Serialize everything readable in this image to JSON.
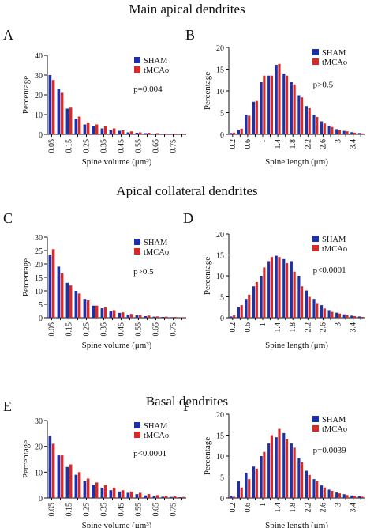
{
  "sections": [
    {
      "title": "Main apical dendrites"
    },
    {
      "title": "Apical collateral dendrites"
    },
    {
      "title": "Basal dendrites"
    }
  ],
  "colors": {
    "sham": "#1f2fa8",
    "tmcao": "#d42a2a"
  },
  "chart_data": [
    {
      "panel": "A",
      "type": "bar",
      "xlabel": "Spine volume (μm³)",
      "ylabel": "Percentage",
      "ylim": [
        0,
        40
      ],
      "yticks": [
        0,
        10,
        20,
        30,
        40
      ],
      "categories": [
        "0.05",
        "0.10",
        "0.15",
        "0.20",
        "0.25",
        "0.30",
        "0.35",
        "0.40",
        "0.45",
        "0.50",
        "0.55",
        "0.60",
        "0.65",
        "0.70",
        "0.75",
        "0.80"
      ],
      "xtick_labels": [
        "0.05",
        "0.15",
        "0.25",
        "0.35",
        "0.45",
        "0.55",
        "0.65",
        "0.75"
      ],
      "series": [
        {
          "name": "SHAM",
          "values": [
            30,
            23,
            13,
            8,
            5,
            4,
            3,
            2,
            1.8,
            1,
            0.8,
            0.6,
            0.4,
            0.3,
            0.2,
            0.1
          ]
        },
        {
          "name": "tMCAo",
          "values": [
            27.5,
            21,
            13.5,
            9,
            6,
            5,
            4,
            3,
            2,
            1.5,
            1,
            0.8,
            0.6,
            0.4,
            0.3,
            0.2
          ]
        }
      ],
      "annotation": "p=0.004",
      "legend": "top-right"
    },
    {
      "panel": "B",
      "type": "bar",
      "xlabel": "Spine length (μm)",
      "ylabel": "Percentage",
      "ylim": [
        0,
        20
      ],
      "yticks": [
        0,
        5,
        10,
        15,
        20
      ],
      "categories": [
        "0.2",
        "0.4",
        "0.6",
        "0.8",
        "1.0",
        "1.2",
        "1.4",
        "1.6",
        "1.8",
        "2.0",
        "2.2",
        "2.4",
        "2.6",
        "2.8",
        "3.0",
        "3.2",
        "3.4",
        "3.6"
      ],
      "xtick_labels": [
        "0.2",
        "0.6",
        "1",
        "1.4",
        "1.8",
        "2.2",
        "2.6",
        "3",
        "3.4"
      ],
      "series": [
        {
          "name": "SHAM",
          "values": [
            0.3,
            1,
            4.5,
            7.5,
            12,
            13.5,
            16,
            14,
            12,
            9,
            6.5,
            4.5,
            3,
            2,
            1.2,
            0.8,
            0.5,
            0.3
          ]
        },
        {
          "name": "tMCAo",
          "values": [
            0.4,
            1.3,
            4.3,
            7.7,
            13.5,
            13.5,
            16.2,
            13.5,
            11.5,
            8.5,
            6,
            4,
            2.5,
            1.7,
            1,
            0.7,
            0.4,
            0.2
          ]
        }
      ],
      "annotation": "p>0.5",
      "legend": "top-right"
    },
    {
      "panel": "C",
      "type": "bar",
      "xlabel": "Spine volume (μm³)",
      "ylabel": "Percentage",
      "ylim": [
        0,
        30
      ],
      "yticks": [
        0,
        5,
        10,
        15,
        20,
        25,
        30
      ],
      "categories": [
        "0.05",
        "0.10",
        "0.15",
        "0.20",
        "0.25",
        "0.30",
        "0.35",
        "0.40",
        "0.45",
        "0.50",
        "0.55",
        "0.60",
        "0.65",
        "0.70",
        "0.75",
        "0.80"
      ],
      "xtick_labels": [
        "0.05",
        "0.15",
        "0.25",
        "0.35",
        "0.45",
        "0.55",
        "0.65",
        "0.75"
      ],
      "series": [
        {
          "name": "SHAM",
          "values": [
            23.5,
            19,
            13,
            10,
            7,
            4.5,
            3.5,
            2.5,
            1.8,
            1.2,
            0.9,
            0.6,
            0.4,
            0.3,
            0.2,
            0.1
          ]
        },
        {
          "name": "tMCAo",
          "values": [
            25.5,
            16.5,
            12,
            9,
            6.5,
            4.5,
            3.8,
            2.8,
            2,
            1.4,
            1,
            0.8,
            0.5,
            0.4,
            0.3,
            0.2
          ]
        }
      ],
      "annotation": "p>0.5",
      "legend": "top-right"
    },
    {
      "panel": "D",
      "type": "bar",
      "xlabel": "Spine length (μm)",
      "ylabel": "Percentage",
      "ylim": [
        0,
        20
      ],
      "yticks": [
        0,
        5,
        10,
        15,
        20
      ],
      "categories": [
        "0.2",
        "0.4",
        "0.6",
        "0.8",
        "1.0",
        "1.2",
        "1.4",
        "1.6",
        "1.8",
        "2.0",
        "2.2",
        "2.4",
        "2.6",
        "2.8",
        "3.0",
        "3.2",
        "3.4",
        "3.6"
      ],
      "xtick_labels": [
        "0.2",
        "0.6",
        "1",
        "1.4",
        "1.8",
        "2.2",
        "2.6",
        "3",
        "3.4"
      ],
      "series": [
        {
          "name": "SHAM",
          "values": [
            0.3,
            2.5,
            4.5,
            7.5,
            10,
            13.5,
            14.8,
            14,
            13.5,
            10,
            6.5,
            4.5,
            3,
            1.8,
            1.2,
            0.8,
            0.5,
            0.3
          ]
        },
        {
          "name": "tMCAo",
          "values": [
            0.6,
            3,
            5.5,
            8.5,
            12,
            14.5,
            14.5,
            13,
            11,
            7.5,
            5,
            3.5,
            2.2,
            1.4,
            1,
            0.6,
            0.4,
            0.2
          ]
        }
      ],
      "annotation": "p<0.0001",
      "legend": "top-right"
    },
    {
      "panel": "E",
      "type": "bar",
      "xlabel": "Spine volume (μm³)",
      "ylabel": "Percentage",
      "ylim": [
        0,
        30
      ],
      "yticks": [
        0,
        10,
        20,
        30
      ],
      "categories": [
        "0.05",
        "0.10",
        "0.15",
        "0.20",
        "0.25",
        "0.30",
        "0.35",
        "0.40",
        "0.45",
        "0.50",
        "0.55",
        "0.60",
        "0.65",
        "0.70",
        "0.75",
        "0.80"
      ],
      "xtick_labels": [
        "0.05",
        "0.15",
        "0.25",
        "0.35",
        "0.45",
        "0.55",
        "0.65",
        "0.75"
      ],
      "series": [
        {
          "name": "SHAM",
          "values": [
            24,
            16.5,
            12,
            9,
            6.5,
            5,
            4,
            3,
            2.5,
            2,
            1.5,
            1,
            0.8,
            0.5,
            0.4,
            0.3
          ]
        },
        {
          "name": "tMCAo",
          "values": [
            21,
            16.5,
            13,
            10,
            7.5,
            6,
            5,
            4,
            3,
            2.5,
            2,
            1.5,
            1.1,
            0.8,
            0.6,
            0.4
          ]
        }
      ],
      "annotation": "p<0.0001",
      "legend": "top-right"
    },
    {
      "panel": "F",
      "type": "bar",
      "xlabel": "Spine length (μm)",
      "ylabel": "Percentage",
      "ylim": [
        0,
        20
      ],
      "yticks": [
        0,
        5,
        10,
        15,
        20
      ],
      "categories": [
        "0.2",
        "0.4",
        "0.6",
        "0.8",
        "1.0",
        "1.2",
        "1.4",
        "1.6",
        "1.8",
        "2.0",
        "2.2",
        "2.4",
        "2.6",
        "2.8",
        "3.0",
        "3.2",
        "3.4",
        "3.6"
      ],
      "xtick_labels": [
        "0.2",
        "0.6",
        "1",
        "1.4",
        "1.8",
        "2.2",
        "2.6",
        "3",
        "3.4"
      ],
      "series": [
        {
          "name": "SHAM",
          "values": [
            0.5,
            4,
            6,
            7.5,
            10,
            13,
            14.5,
            15.5,
            13,
            9.5,
            6.5,
            4.5,
            3,
            2,
            1.3,
            0.9,
            0.6,
            0.4
          ]
        },
        {
          "name": "tMCAo",
          "values": [
            0.3,
            2.5,
            4.5,
            7,
            11,
            15,
            16.5,
            14,
            12,
            8.5,
            5.5,
            4,
            2.5,
            1.7,
            1.1,
            0.7,
            0.5,
            0.3
          ]
        }
      ],
      "annotation": "p=0.0039",
      "legend": "top-right"
    }
  ]
}
